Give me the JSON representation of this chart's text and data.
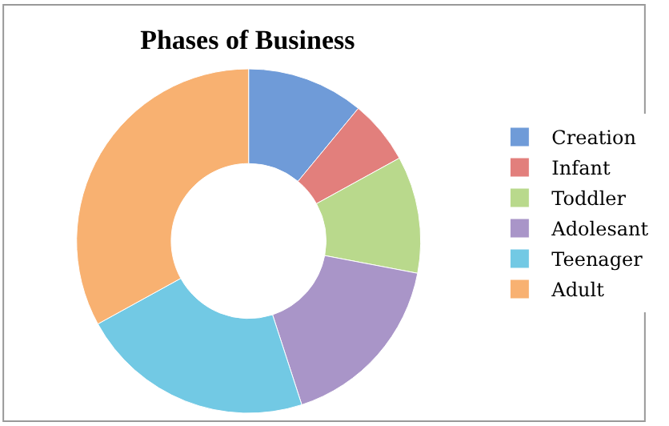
{
  "chart_data": {
    "type": "donut",
    "title": "Phases of Business",
    "categories": [
      "Creation",
      "Infant",
      "Toddler",
      "Adolesant",
      "Teenager",
      "Adult"
    ],
    "values": [
      11,
      6,
      11,
      17,
      22,
      33
    ],
    "colors": [
      "#6f9bd8",
      "#e27f7c",
      "#b9d98c",
      "#a995c8",
      "#72c9e4",
      "#f8b171"
    ],
    "legend": "right"
  }
}
